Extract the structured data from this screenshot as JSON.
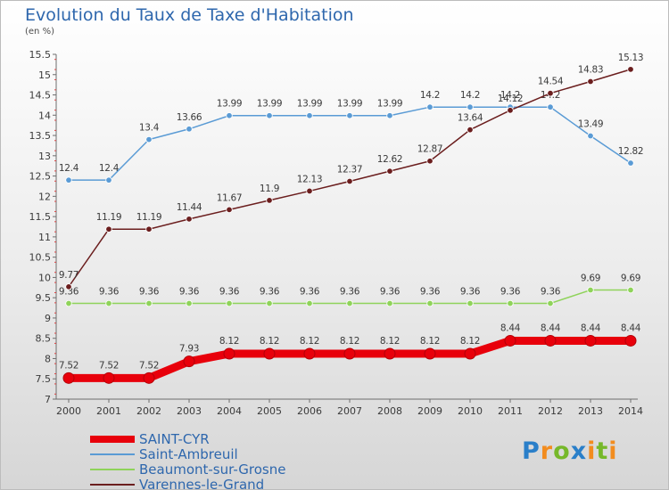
{
  "title": "Evolution du Taux de Taxe d'Habitation",
  "unit": "(en %)",
  "logo": "Proxiti",
  "chart_data": {
    "type": "line",
    "x": [
      "2000",
      "2001",
      "2002",
      "2003",
      "2004",
      "2005",
      "2006",
      "2007",
      "2008",
      "2009",
      "2010",
      "2011",
      "2012",
      "2013",
      "2014"
    ],
    "ylim": [
      7,
      15.5
    ],
    "yticks": [
      "7",
      "7.5",
      "8",
      "8.5",
      "9",
      "9.5",
      "10",
      "10.5",
      "11",
      "11.5",
      "12",
      "12.5",
      "13",
      "13.5",
      "14",
      "14.5",
      "15",
      "15.5"
    ],
    "grid": false,
    "legend": "bottom-left",
    "series": [
      {
        "name": "SAINT-CYR",
        "color": "#e8000b",
        "values": [
          7.52,
          7.52,
          7.52,
          7.93,
          8.12,
          8.12,
          8.12,
          8.12,
          8.12,
          8.12,
          8.12,
          8.44,
          8.44,
          8.44,
          8.44
        ],
        "labels": [
          "7.52",
          "7.52",
          "7.52",
          "7.93",
          "8.12",
          "8.12",
          "8.12",
          "8.12",
          "8.12",
          "8.12",
          "8.12",
          "8.44",
          "8.44",
          "8.44",
          "8.44"
        ]
      },
      {
        "name": "Saint-Ambreuil",
        "color": "#5a9bd5",
        "values": [
          12.4,
          12.4,
          13.4,
          13.66,
          13.99,
          13.99,
          13.99,
          13.99,
          13.99,
          14.2,
          14.2,
          14.2,
          14.2,
          13.49,
          12.82
        ],
        "labels": [
          "12.4",
          "12.4",
          "13.4",
          "13.66",
          "13.99",
          "13.99",
          "13.99",
          "13.99",
          "13.99",
          "14.2",
          "14.2",
          "14.2",
          "14.2",
          "13.49",
          "12.82"
        ]
      },
      {
        "name": "Beaumont-sur-Grosne",
        "color": "#8fd35a",
        "values": [
          9.36,
          9.36,
          9.36,
          9.36,
          9.36,
          9.36,
          9.36,
          9.36,
          9.36,
          9.36,
          9.36,
          9.36,
          9.36,
          9.69,
          9.69
        ],
        "labels": [
          "9.36",
          "9.36",
          "9.36",
          "9.36",
          "9.36",
          "9.36",
          "9.36",
          "9.36",
          "9.36",
          "9.36",
          "9.36",
          "9.36",
          "9.36",
          "9.69",
          "9.69"
        ]
      },
      {
        "name": "Varennes-le-Grand",
        "color": "#6b1e1e",
        "values": [
          9.77,
          11.19,
          11.19,
          11.44,
          11.67,
          11.9,
          12.13,
          12.37,
          12.62,
          12.87,
          13.64,
          14.12,
          14.54,
          14.83,
          15.13
        ],
        "labels": [
          "9.77",
          "11.19",
          "11.19",
          "11.44",
          "11.67",
          "11.9",
          "12.13",
          "12.37",
          "12.62",
          "12.87",
          "13.64",
          "14.12",
          "14.54",
          "14.83",
          "15.13"
        ]
      }
    ]
  }
}
